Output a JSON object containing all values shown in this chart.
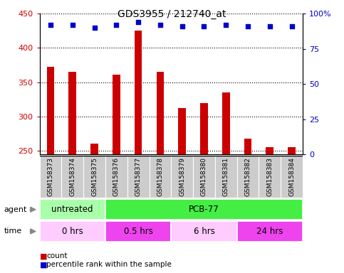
{
  "title": "GDS3955 / 212740_at",
  "samples": [
    "GSM158373",
    "GSM158374",
    "GSM158375",
    "GSM158376",
    "GSM158377",
    "GSM158378",
    "GSM158379",
    "GSM158380",
    "GSM158381",
    "GSM158382",
    "GSM158383",
    "GSM158384"
  ],
  "counts": [
    372,
    365,
    260,
    361,
    425,
    365,
    312,
    320,
    335,
    268,
    255,
    255
  ],
  "percentiles": [
    92,
    92,
    90,
    92,
    94,
    92,
    91,
    91,
    92,
    91,
    91,
    91
  ],
  "ylim_left": [
    245,
    450
  ],
  "ylim_right": [
    0,
    100
  ],
  "yticks_left": [
    250,
    300,
    350,
    400,
    450
  ],
  "yticks_right": [
    0,
    25,
    50,
    75,
    100
  ],
  "bar_color": "#cc0000",
  "dot_color": "#0000cc",
  "bar_width": 0.35,
  "agent_labels": [
    {
      "text": "untreated",
      "start": 0,
      "end": 3,
      "color": "#aaffaa"
    },
    {
      "text": "PCB-77",
      "start": 3,
      "end": 12,
      "color": "#44ee44"
    }
  ],
  "time_labels": [
    {
      "text": "0 hrs",
      "start": 0,
      "end": 3,
      "color": "#ffccff"
    },
    {
      "text": "0.5 hrs",
      "start": 3,
      "end": 6,
      "color": "#ee44ee"
    },
    {
      "text": "6 hrs",
      "start": 6,
      "end": 9,
      "color": "#ffccff"
    },
    {
      "text": "24 hrs",
      "start": 9,
      "end": 12,
      "color": "#ee44ee"
    }
  ],
  "legend_count_color": "#cc0000",
  "legend_dot_color": "#0000cc",
  "grid_color": "#000000",
  "tick_color_left": "#cc0000",
  "tick_color_right": "#0000cc",
  "bg_color": "#ffffff",
  "xticklabel_bg": "#cccccc",
  "arrow_color": "#888888"
}
